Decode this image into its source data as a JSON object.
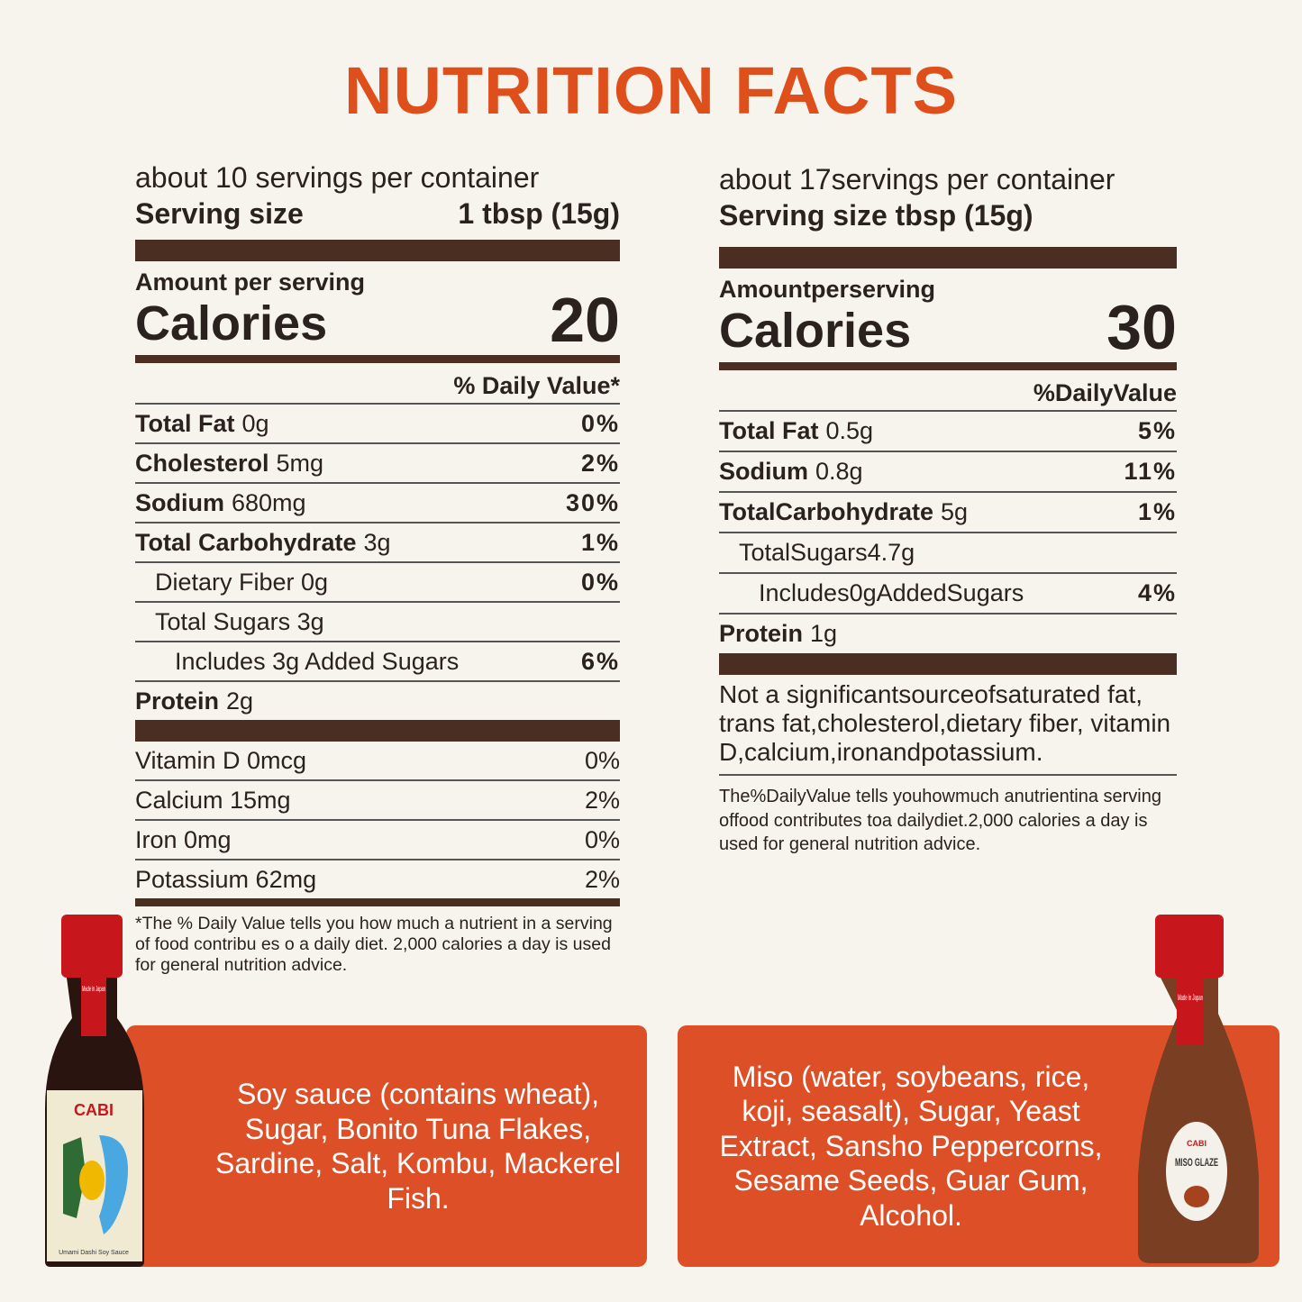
{
  "title": "NUTRITION FACTS",
  "labels": [
    {
      "servings": "about 10 servings per container",
      "serving_size_label": "Serving size",
      "serving_size_value": "1 tbsp (15g)",
      "amount_per_serving": "Amount per serving",
      "calories_label": "Calories",
      "calories": 20,
      "daily_value_header": "% Daily Value*",
      "rows": [
        {
          "nutrient": "Total Fat",
          "amount": "0g",
          "dv": "0%"
        },
        {
          "nutrient": "Cholesterol",
          "amount": "5mg",
          "dv": "2%"
        },
        {
          "nutrient": "Sodium",
          "amount": "680mg",
          "dv": "30%"
        },
        {
          "nutrient": "Total Carbohydrate",
          "amount": "3g",
          "dv": "1%"
        },
        {
          "text": "Dietary Fiber 0g",
          "dv": "0%"
        },
        {
          "text": "Total Sugars 3g"
        },
        {
          "text": "Includes 3g Added Sugars",
          "dv": "6%"
        },
        {
          "nutrient": "Protein",
          "amount": "2g"
        }
      ],
      "vitamins": [
        {
          "text": "Vitamin D 0mcg",
          "dv": "0%"
        },
        {
          "text": "Calcium 15mg",
          "dv": "2%"
        },
        {
          "text": "Iron 0mg",
          "dv": "0%"
        },
        {
          "text": "Potassium 62mg",
          "dv": "2%"
        }
      ],
      "footnote": "*The % Daily Value tells you how much a nutrient in a serving of food contribu es  o a daily diet. 2,000 calories a day is used for general nutrition advice."
    },
    {
      "servings": "about 17servings per container",
      "serving_size_label": "Serving size tbsp (15g)",
      "amount_per_serving": "Amountperserving",
      "calories_label": "Calories",
      "calories": 30,
      "daily_value_header": "%DailyValue",
      "rows": [
        {
          "nutrient": "Total Fat",
          "amount": "0.5g",
          "dv": "5%"
        },
        {
          "nutrient": "Sodium",
          "amount": "0.8g",
          "dv": "11%"
        },
        {
          "nutrient": "TotalCarbohydrate",
          "amount": "5g",
          "dv": "1%"
        },
        {
          "text": "TotalSugars4.7g"
        },
        {
          "text": "Includes0gAddedSugars",
          "dv": "4%"
        },
        {
          "nutrient": "Protein",
          "amount": "1g"
        }
      ],
      "note": "Not a significantsourceofsaturated fat, trans fat,cholesterol,dietary fiber, vitamin D,calcium,ironandpotassium.",
      "footnote": "The%DailyValue tells youhowmuch anutrientina serving offood contributes toa dailydiet.2,000 calories a day is used for general nutrition advice."
    }
  ],
  "ingredients": [
    "Soy sauce (contains wheat), Sugar, Bonito Tuna Flakes, Sardine, Salt, Kombu, Mackerel Fish.",
    "Miso (water, soybeans, rice, koji, seasalt), Sugar, Yeast Extract, Sansho Peppercorns, Sesame Seeds, Guar Gum, Alcohol."
  ],
  "bottles": [
    {
      "brand": "CABI",
      "badge": "Made in Japan",
      "product": "Umami Dashi Soy Sauce"
    },
    {
      "brand": "CABI",
      "badge": "Made in Japan",
      "product": "MISO GLAZE"
    }
  ]
}
